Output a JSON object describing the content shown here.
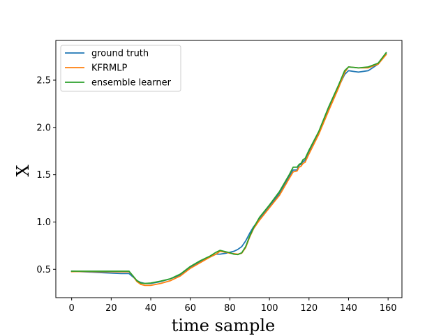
{
  "chart_data": {
    "type": "line",
    "xlabel": "time sample",
    "ylabel": "X",
    "xlim": [
      -8,
      167
    ],
    "ylim": [
      0.2,
      2.92
    ],
    "xticks": [
      0,
      20,
      40,
      60,
      80,
      100,
      120,
      140,
      160
    ],
    "yticks": [
      0.5,
      1.0,
      1.5,
      2.0,
      2.5
    ],
    "ytick_labels": [
      "0.5",
      "1.0",
      "1.5",
      "2.0",
      "2.5"
    ],
    "legend_position": "upper-left",
    "grid": false,
    "x": [
      0,
      5,
      10,
      15,
      20,
      25,
      29,
      31,
      33,
      35,
      37,
      40,
      45,
      50,
      55,
      60,
      65,
      70,
      73,
      75,
      78,
      80,
      82,
      84,
      86,
      88,
      90,
      92,
      95,
      100,
      105,
      110,
      112,
      114,
      115,
      116,
      117,
      118,
      120,
      125,
      130,
      135,
      138,
      140,
      145,
      150,
      155,
      159
    ],
    "series": [
      {
        "name": "ground truth",
        "color": "#1f77b4",
        "values": [
          0.48,
          0.475,
          0.47,
          0.465,
          0.46,
          0.455,
          0.455,
          0.42,
          0.38,
          0.36,
          0.35,
          0.35,
          0.37,
          0.4,
          0.44,
          0.52,
          0.58,
          0.63,
          0.66,
          0.66,
          0.67,
          0.68,
          0.69,
          0.71,
          0.74,
          0.8,
          0.88,
          0.95,
          1.03,
          1.16,
          1.3,
          1.48,
          1.55,
          1.55,
          1.6,
          1.61,
          1.64,
          1.65,
          1.74,
          1.95,
          2.2,
          2.43,
          2.56,
          2.6,
          2.585,
          2.6,
          2.67,
          2.78
        ]
      },
      {
        "name": "KFRMLP",
        "color": "#ff7f0e",
        "values": [
          0.475,
          0.478,
          0.476,
          0.475,
          0.475,
          0.474,
          0.475,
          0.43,
          0.37,
          0.34,
          0.33,
          0.33,
          0.35,
          0.38,
          0.43,
          0.51,
          0.57,
          0.63,
          0.66,
          0.69,
          0.68,
          0.67,
          0.665,
          0.66,
          0.67,
          0.73,
          0.84,
          0.93,
          1.02,
          1.15,
          1.28,
          1.46,
          1.53,
          1.54,
          1.58,
          1.59,
          1.62,
          1.63,
          1.72,
          1.93,
          2.18,
          2.42,
          2.58,
          2.64,
          2.63,
          2.63,
          2.67,
          2.77
        ]
      },
      {
        "name": "ensemble learner",
        "color": "#2ca02c",
        "values": [
          0.48,
          0.48,
          0.48,
          0.48,
          0.48,
          0.48,
          0.48,
          0.43,
          0.38,
          0.355,
          0.35,
          0.355,
          0.375,
          0.4,
          0.45,
          0.53,
          0.59,
          0.64,
          0.68,
          0.7,
          0.685,
          0.675,
          0.66,
          0.655,
          0.675,
          0.74,
          0.85,
          0.94,
          1.05,
          1.18,
          1.32,
          1.5,
          1.58,
          1.58,
          1.61,
          1.62,
          1.66,
          1.67,
          1.76,
          1.96,
          2.22,
          2.45,
          2.6,
          2.64,
          2.63,
          2.64,
          2.68,
          2.79
        ]
      }
    ]
  }
}
